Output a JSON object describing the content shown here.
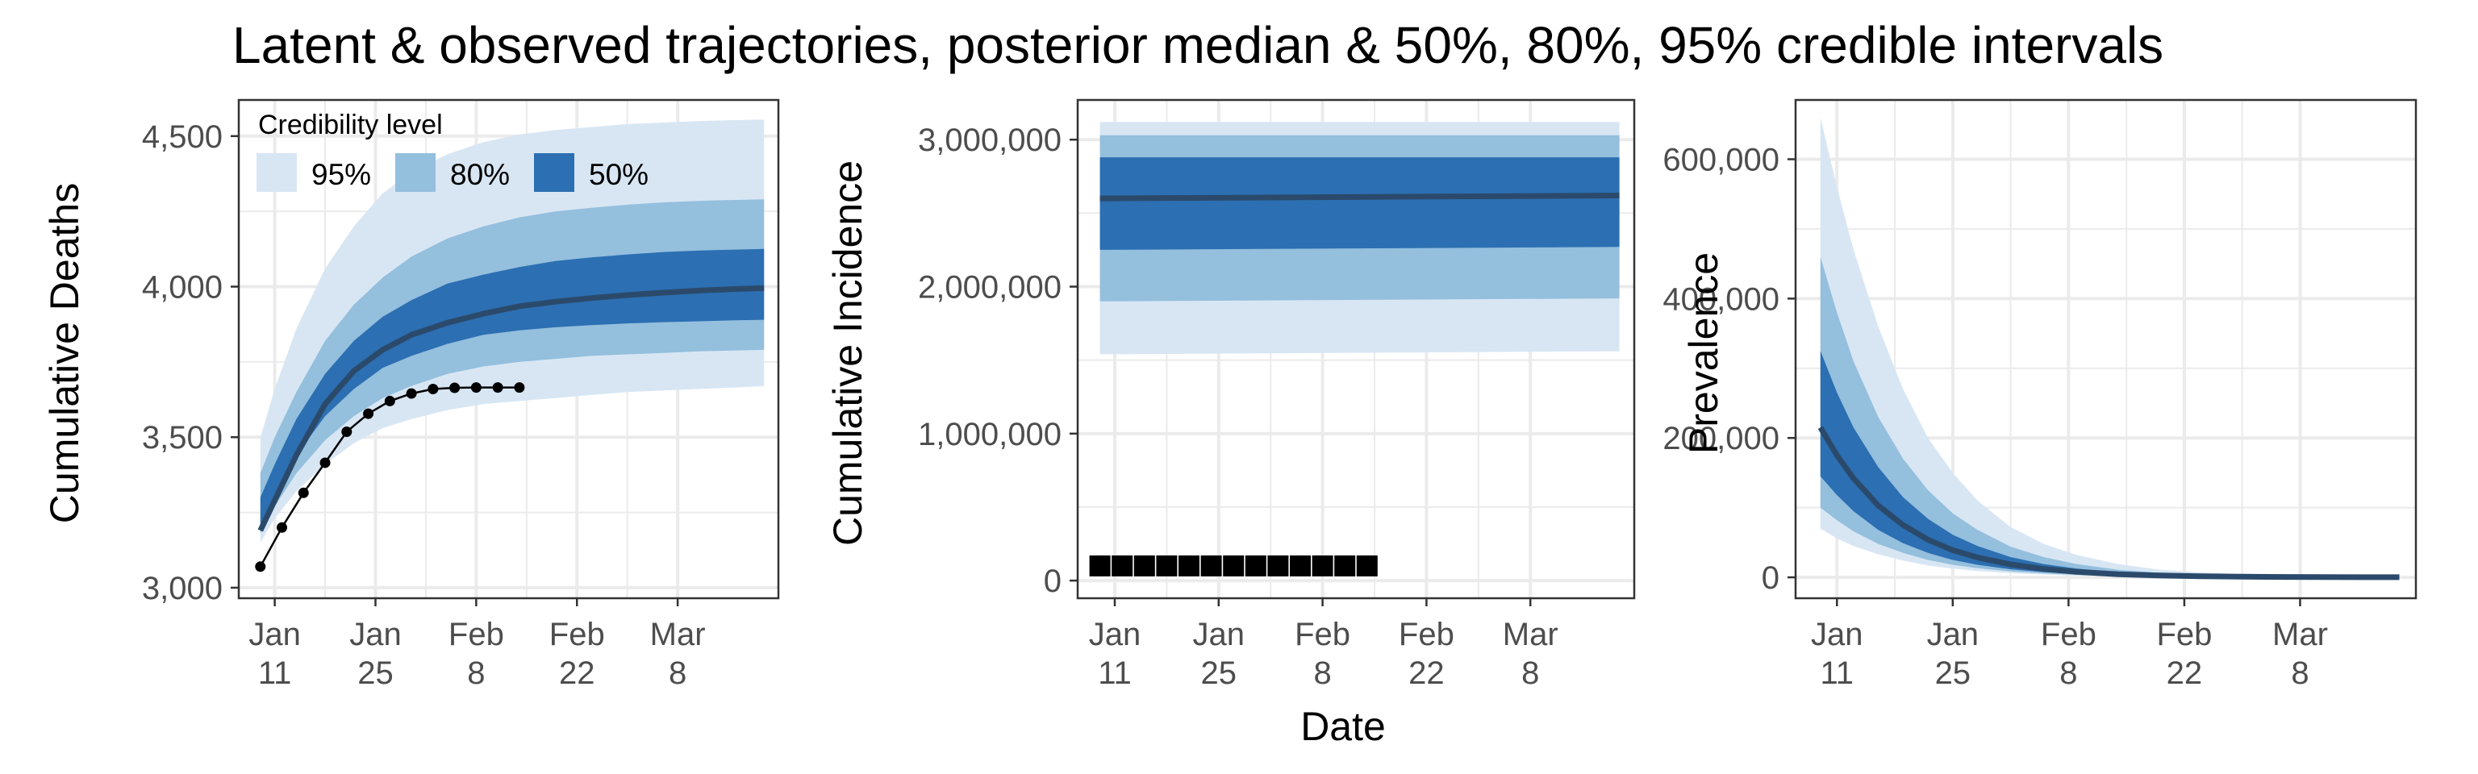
{
  "figure": {
    "title": "Latent & observed trajectories, posterior median & 50%, 80%, 95% credible intervals",
    "xlabel": "Date"
  },
  "colors": {
    "band95": "#d8e6f4",
    "band80": "#94bfdd",
    "band50": "#2c6fb2",
    "median": "#2b4a6b",
    "observed": "#000000",
    "grid": "#ebebeb",
    "panel_border": "#333333",
    "tick_text": "#4d4d4d"
  },
  "legend": {
    "title": "Credibility level",
    "placement": "top-left",
    "items": [
      {
        "label": "95%",
        "color_key": "band95"
      },
      {
        "label": "80%",
        "color_key": "band80"
      },
      {
        "label": "50%",
        "color_key": "band50"
      }
    ]
  },
  "chart_data": [
    {
      "type": "area",
      "ylabel": "Cumulative Deaths",
      "xlim_day": [
        6,
        81
      ],
      "ylim": [
        2965,
        4620
      ],
      "yticks": [
        3000,
        3500,
        4000,
        4500
      ],
      "ytick_labels": [
        "3,000",
        "3,500",
        "4,000",
        "4,500"
      ],
      "xtick_days": [
        11,
        25,
        39,
        53,
        67
      ],
      "xtick_labels": [
        [
          "Jan",
          "11"
        ],
        [
          "Jan",
          "25"
        ],
        [
          "Feb",
          "8"
        ],
        [
          "Feb",
          "22"
        ],
        [
          "Mar",
          "8"
        ]
      ],
      "x_days": [
        9,
        11,
        14,
        18,
        22,
        26,
        30,
        35,
        40,
        45,
        50,
        55,
        60,
        65,
        70,
        75,
        79
      ],
      "lower95": [
        3150,
        3230,
        3320,
        3410,
        3480,
        3530,
        3560,
        3590,
        3610,
        3620,
        3630,
        3640,
        3650,
        3655,
        3660,
        3665,
        3670
      ],
      "upper95": [
        3500,
        3660,
        3860,
        4060,
        4200,
        4310,
        4380,
        4440,
        4480,
        4505,
        4520,
        4530,
        4540,
        4545,
        4550,
        4553,
        4555
      ],
      "lower80": [
        3180,
        3270,
        3380,
        3490,
        3570,
        3630,
        3670,
        3710,
        3735,
        3750,
        3760,
        3770,
        3775,
        3780,
        3785,
        3788,
        3790
      ],
      "upper80": [
        3380,
        3500,
        3650,
        3820,
        3940,
        4030,
        4100,
        4160,
        4200,
        4230,
        4250,
        4262,
        4272,
        4280,
        4285,
        4288,
        4290
      ],
      "lower50": [
        3200,
        3300,
        3440,
        3570,
        3660,
        3730,
        3770,
        3810,
        3840,
        3855,
        3865,
        3872,
        3878,
        3882,
        3885,
        3888,
        3890
      ],
      "upper50": [
        3300,
        3410,
        3560,
        3710,
        3820,
        3900,
        3955,
        4010,
        4040,
        4065,
        4085,
        4097,
        4107,
        4115,
        4120,
        4123,
        4125
      ],
      "median": [
        3190,
        3290,
        3440,
        3610,
        3720,
        3790,
        3840,
        3880,
        3910,
        3935,
        3950,
        3962,
        3972,
        3980,
        3987,
        3992,
        3995
      ],
      "observed": {
        "style": "line-points",
        "x_days": [
          9,
          12,
          15,
          18,
          21,
          24,
          27,
          30,
          33,
          36,
          39,
          42,
          45
        ],
        "values": [
          3070,
          3200,
          3315,
          3415,
          3518,
          3578,
          3620,
          3645,
          3660,
          3664,
          3665,
          3665,
          3665
        ]
      }
    },
    {
      "type": "area",
      "ylabel": "Cumulative Incidence",
      "xlim_day": [
        6,
        81
      ],
      "ylim": [
        -120000,
        3270000
      ],
      "yticks": [
        0,
        1000000,
        2000000,
        3000000
      ],
      "ytick_labels": [
        "0",
        "1,000,000",
        "2,000,000",
        "3,000,000"
      ],
      "xtick_days": [
        11,
        25,
        39,
        53,
        67
      ],
      "xtick_labels": [
        [
          "Jan",
          "11"
        ],
        [
          "Jan",
          "25"
        ],
        [
          "Feb",
          "8"
        ],
        [
          "Feb",
          "22"
        ],
        [
          "Mar",
          "8"
        ]
      ],
      "x_days": [
        9,
        79
      ],
      "lower95": [
        1540000,
        1560000
      ],
      "upper95": [
        3120000,
        3120000
      ],
      "lower80": [
        1900000,
        1920000
      ],
      "upper80": [
        3030000,
        3030000
      ],
      "lower50": [
        2250000,
        2270000
      ],
      "upper50": [
        2880000,
        2880000
      ],
      "median": [
        2600000,
        2620000
      ],
      "observed": {
        "style": "squares",
        "x_days": [
          9,
          12,
          15,
          18,
          21,
          24,
          27,
          30,
          33,
          36,
          39,
          42,
          45
        ],
        "values": [
          100000,
          100000,
          100000,
          100000,
          100000,
          100000,
          100000,
          100000,
          100000,
          100000,
          100000,
          100000,
          100000
        ]
      }
    },
    {
      "type": "area",
      "ylabel": "Prevalence",
      "xlim_day": [
        6,
        81
      ],
      "ylim": [
        -30000,
        685000
      ],
      "yticks": [
        0,
        200000,
        400000,
        600000
      ],
      "ytick_labels": [
        "0",
        "200,000",
        "400,000",
        "600,000"
      ],
      "xtick_days": [
        11,
        25,
        39,
        53,
        67
      ],
      "xtick_labels": [
        [
          "Jan",
          "11"
        ],
        [
          "Jan",
          "25"
        ],
        [
          "Feb",
          "8"
        ],
        [
          "Feb",
          "22"
        ],
        [
          "Mar",
          "8"
        ]
      ],
      "x_days": [
        9,
        11,
        13,
        16,
        19,
        22,
        25,
        28,
        32,
        36,
        40,
        45,
        50,
        55,
        60,
        65,
        70,
        75,
        79
      ],
      "lower95": [
        70000,
        56000,
        45000,
        33000,
        24000,
        17000,
        12500,
        9000,
        6000,
        4000,
        2500,
        1500,
        900,
        500,
        300,
        200,
        100,
        50,
        30
      ],
      "upper95": [
        660000,
        560000,
        470000,
        360000,
        270000,
        200000,
        150000,
        110000,
        72000,
        48000,
        32000,
        19000,
        11000,
        7000,
        4500,
        3000,
        2000,
        1300,
        900
      ],
      "lower80": [
        100000,
        82000,
        66000,
        48000,
        35000,
        25000,
        18000,
        13000,
        8500,
        5500,
        3500,
        2000,
        1200,
        700,
        400,
        250,
        150,
        80,
        50
      ],
      "upper80": [
        460000,
        380000,
        310000,
        230000,
        170000,
        125000,
        92000,
        68000,
        44000,
        29000,
        19000,
        11000,
        6500,
        4000,
        2500,
        1600,
        1000,
        650,
        450
      ],
      "lower50": [
        145000,
        118000,
        95000,
        68000,
        49000,
        35000,
        25000,
        18000,
        11500,
        7500,
        4800,
        2700,
        1600,
        900,
        550,
        350,
        200,
        120,
        80
      ],
      "upper50": [
        325000,
        265000,
        215000,
        158000,
        115000,
        84000,
        61000,
        45000,
        29000,
        19000,
        12500,
        7200,
        4200,
        2500,
        1500,
        950,
        600,
        400,
        280
      ],
      "median": [
        215000,
        175000,
        142000,
        103000,
        75000,
        54000,
        39000,
        28500,
        18500,
        12000,
        7800,
        4400,
        2600,
        1500,
        900,
        560,
        350,
        220,
        150
      ]
    }
  ]
}
